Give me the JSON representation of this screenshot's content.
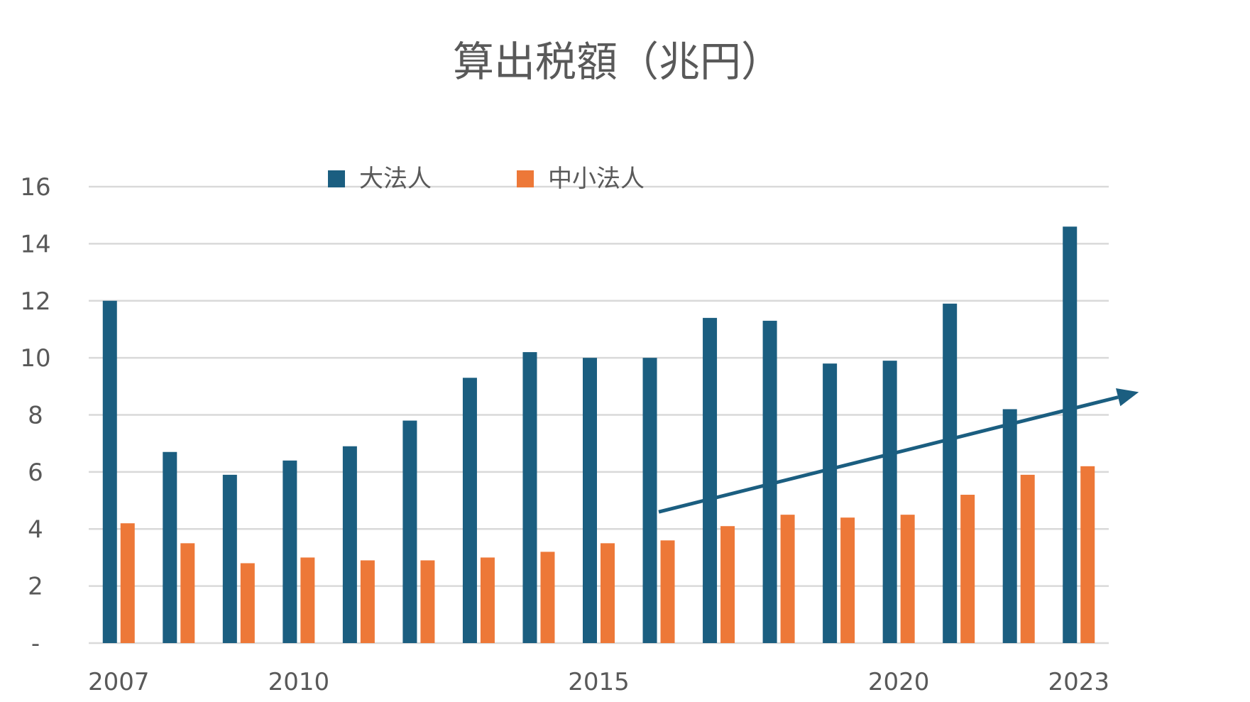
{
  "chart_data": {
    "type": "bar",
    "title": "算出税額（兆円）",
    "xlabel": "",
    "ylabel": "",
    "ylim": [
      0,
      16
    ],
    "yticks": [
      {
        "value": 0,
        "label": "-"
      },
      {
        "value": 2,
        "label": "2"
      },
      {
        "value": 4,
        "label": "4"
      },
      {
        "value": 6,
        "label": "6"
      },
      {
        "value": 8,
        "label": "8"
      },
      {
        "value": 10,
        "label": "10"
      },
      {
        "value": 12,
        "label": "12"
      },
      {
        "value": 14,
        "label": "14"
      },
      {
        "value": 16,
        "label": "16"
      }
    ],
    "categories": [
      "2007",
      "2008",
      "2009",
      "2010",
      "2011",
      "2012",
      "2013",
      "2014",
      "2015",
      "2016",
      "2017",
      "2018",
      "2019",
      "2020",
      "2021",
      "2022",
      "2023"
    ],
    "x_tick_labels": [
      "2007",
      "",
      "",
      "2010",
      "",
      "",
      "",
      "",
      "2015",
      "",
      "",
      "",
      "",
      "2020",
      "",
      "",
      "2023"
    ],
    "series": [
      {
        "name": "大法人",
        "color": "#1B5E80",
        "values": [
          12.0,
          6.7,
          5.9,
          6.4,
          6.9,
          7.8,
          9.3,
          10.2,
          10.0,
          10.0,
          11.4,
          11.3,
          9.8,
          9.9,
          11.9,
          8.2,
          14.6
        ]
      },
      {
        "name": "中小法人",
        "color": "#ED7838",
        "values": [
          4.2,
          3.5,
          2.8,
          3.0,
          2.9,
          2.9,
          3.0,
          3.2,
          3.5,
          3.6,
          4.1,
          4.5,
          4.4,
          4.5,
          5.2,
          5.9,
          6.2
        ]
      }
    ],
    "trend_arrow": {
      "color": "#1B5E80",
      "from": {
        "x": "2016",
        "y": 4.6
      },
      "to": {
        "x": "2024",
        "y": 8.8
      }
    },
    "grid": true,
    "legend_position": "top-center"
  }
}
